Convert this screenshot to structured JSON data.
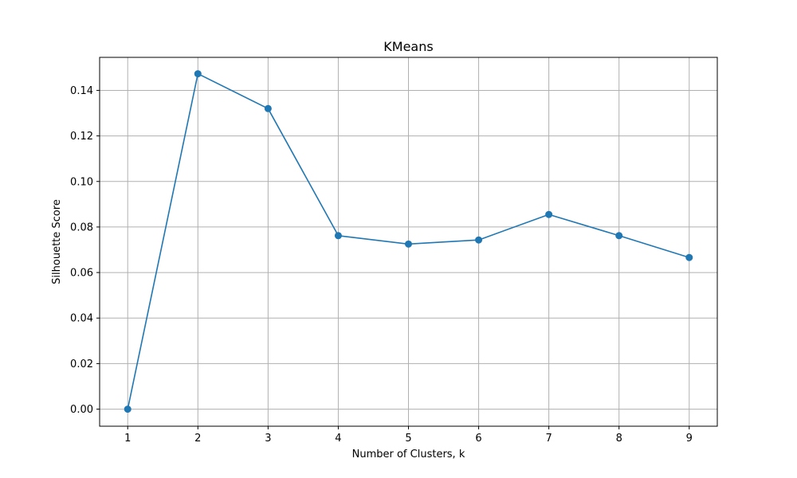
{
  "chart_data": {
    "type": "line",
    "title": "KMeans",
    "xlabel": "Number of Clusters, k",
    "ylabel": "Silhouette Score",
    "x": [
      1,
      2,
      3,
      4,
      5,
      6,
      7,
      8,
      9
    ],
    "series": [
      {
        "values": [
          0.0,
          0.1473,
          0.132,
          0.0762,
          0.0725,
          0.0743,
          0.0855,
          0.0762,
          0.0666
        ],
        "color": "#1f77b4",
        "marker": "circle"
      }
    ],
    "xlim": [
      0.6,
      9.4
    ],
    "ylim": [
      -0.0075,
      0.1545
    ],
    "xticks": [
      1,
      2,
      3,
      4,
      5,
      6,
      7,
      8,
      9
    ],
    "yticks": [
      0.0,
      0.02,
      0.04,
      0.06,
      0.08,
      0.1,
      0.12,
      0.14
    ],
    "ytick_labels": [
      "0.00",
      "0.02",
      "0.04",
      "0.06",
      "0.08",
      "0.10",
      "0.12",
      "0.14"
    ],
    "grid": true,
    "legend": false
  }
}
